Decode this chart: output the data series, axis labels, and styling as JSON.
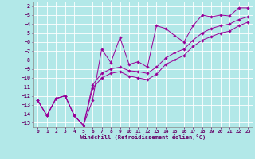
{
  "xlabel": "Windchill (Refroidissement éolien,°C)",
  "bg_color": "#b2e8e8",
  "grid_color": "#ffffff",
  "line_color": "#990099",
  "xlim": [
    -0.5,
    23.5
  ],
  "ylim": [
    -15.5,
    -1.5
  ],
  "xticks": [
    0,
    1,
    2,
    3,
    4,
    5,
    6,
    7,
    8,
    9,
    10,
    11,
    12,
    13,
    14,
    15,
    16,
    17,
    18,
    19,
    20,
    21,
    22,
    23
  ],
  "yticks": [
    -2,
    -3,
    -4,
    -5,
    -6,
    -7,
    -8,
    -9,
    -10,
    -11,
    -12,
    -13,
    -14,
    -15
  ],
  "series": [
    [
      0,
      -12.5,
      1,
      -14.2,
      2,
      -12.3,
      3,
      -12.0,
      4,
      -14.2,
      5,
      -15.3,
      6,
      -12.5,
      7,
      -6.8,
      8,
      -8.3,
      9,
      -5.5,
      10,
      -8.5,
      11,
      -8.2,
      12,
      -8.8,
      13,
      -4.2,
      14,
      -4.5,
      15,
      -5.3,
      16,
      -6.0,
      17,
      -4.2,
      18,
      -3.0,
      19,
      -3.2,
      20,
      -3.0,
      21,
      -3.1,
      22,
      -2.2,
      23,
      -2.2
    ],
    [
      0,
      -12.5,
      1,
      -14.2,
      2,
      -12.3,
      3,
      -12.0,
      4,
      -14.2,
      5,
      -15.3,
      6,
      -10.8,
      7,
      -9.5,
      8,
      -9.0,
      9,
      -8.8,
      10,
      -9.2,
      11,
      -9.3,
      12,
      -9.5,
      13,
      -8.8,
      14,
      -7.8,
      15,
      -7.2,
      16,
      -6.8,
      17,
      -5.8,
      18,
      -5.0,
      19,
      -4.5,
      20,
      -4.2,
      21,
      -4.0,
      22,
      -3.5,
      23,
      -3.2
    ],
    [
      0,
      -12.5,
      1,
      -14.2,
      2,
      -12.3,
      3,
      -12.0,
      4,
      -14.2,
      5,
      -15.3,
      6,
      -11.2,
      7,
      -10.0,
      8,
      -9.5,
      9,
      -9.3,
      10,
      -9.8,
      11,
      -10.0,
      12,
      -10.2,
      13,
      -9.6,
      14,
      -8.5,
      15,
      -8.0,
      16,
      -7.5,
      17,
      -6.5,
      18,
      -5.8,
      19,
      -5.4,
      20,
      -5.0,
      21,
      -4.8,
      22,
      -4.2,
      23,
      -3.8
    ]
  ]
}
